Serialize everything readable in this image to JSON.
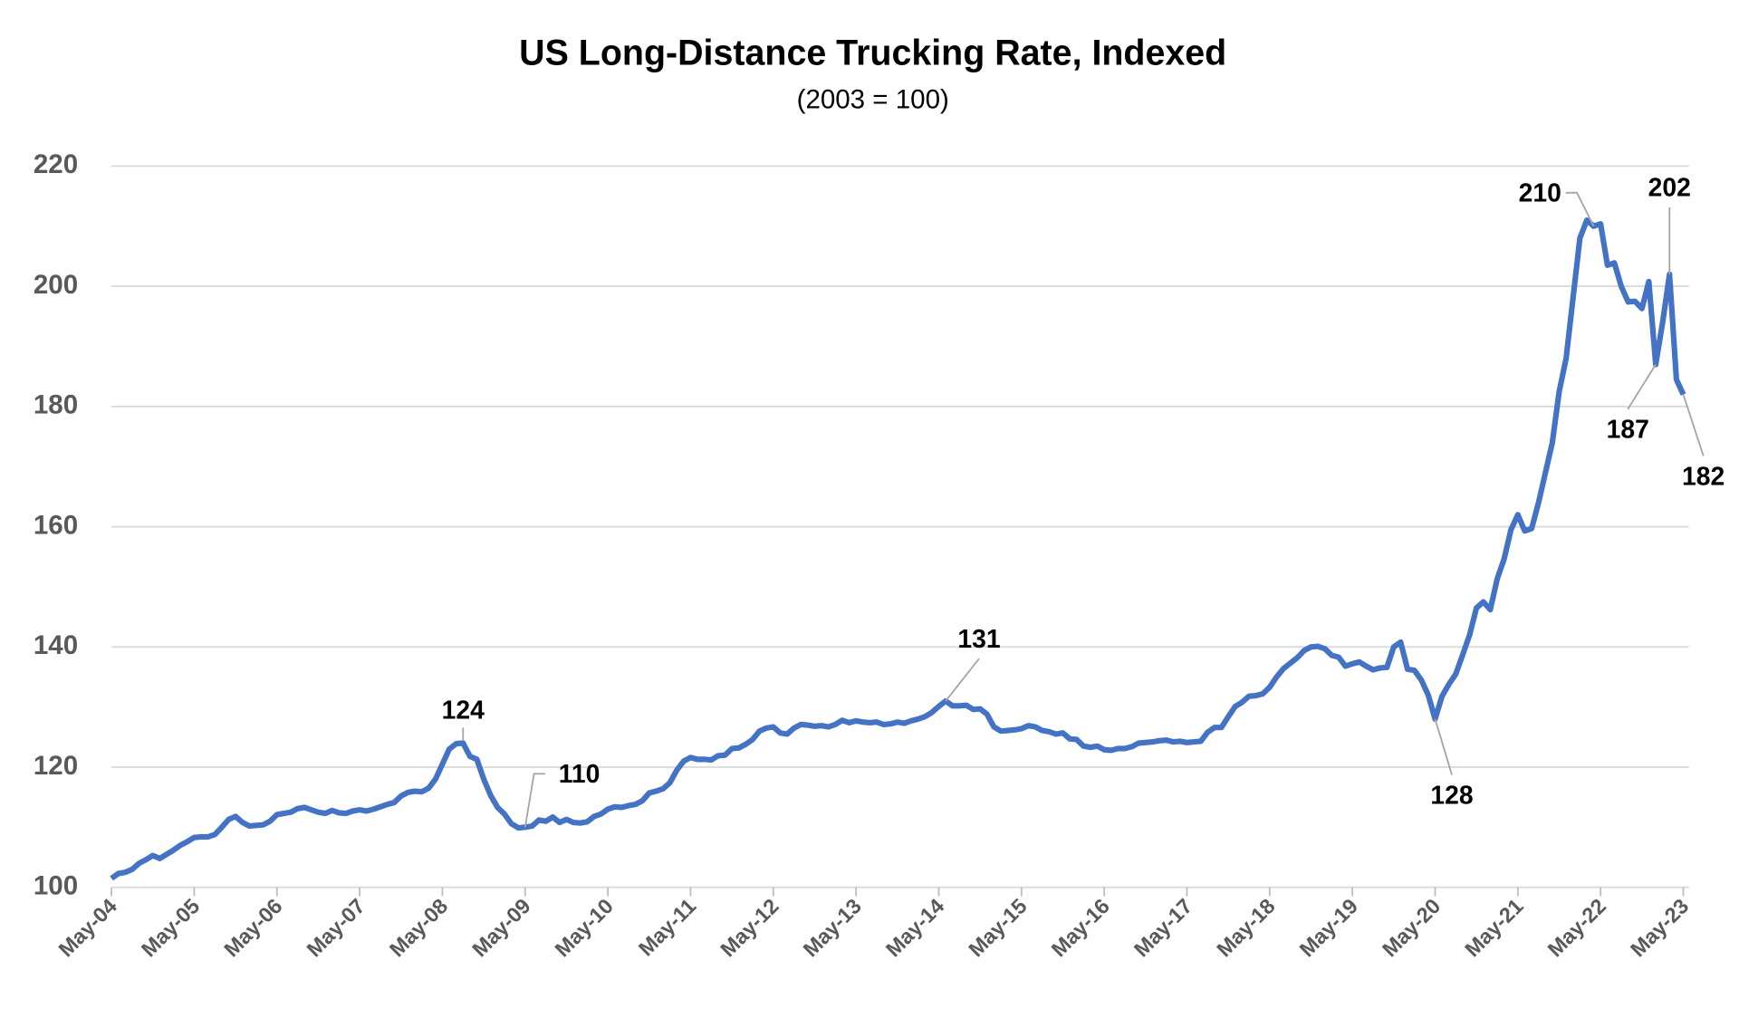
{
  "chart_data": {
    "type": "line",
    "title": "US Long-Distance Trucking Rate, Indexed",
    "subtitle": "(2003 = 100)",
    "categories": [
      "May-04",
      null,
      null,
      null,
      null,
      null,
      null,
      null,
      null,
      null,
      null,
      null,
      "May-05",
      null,
      null,
      null,
      null,
      null,
      null,
      null,
      null,
      null,
      null,
      null,
      "May-06",
      null,
      null,
      null,
      null,
      null,
      null,
      null,
      null,
      null,
      null,
      null,
      "May-07",
      null,
      null,
      null,
      null,
      null,
      null,
      null,
      null,
      null,
      null,
      null,
      "May-08",
      null,
      null,
      null,
      null,
      null,
      null,
      null,
      null,
      null,
      null,
      null,
      "May-09",
      null,
      null,
      null,
      null,
      null,
      null,
      null,
      null,
      null,
      null,
      null,
      "May-10",
      null,
      null,
      null,
      null,
      null,
      null,
      null,
      null,
      null,
      null,
      null,
      "May-11",
      null,
      null,
      null,
      null,
      null,
      null,
      null,
      null,
      null,
      null,
      null,
      "May-12",
      null,
      null,
      null,
      null,
      null,
      null,
      null,
      null,
      null,
      null,
      null,
      "May-13",
      null,
      null,
      null,
      null,
      null,
      null,
      null,
      null,
      null,
      null,
      null,
      "May-14",
      null,
      null,
      null,
      null,
      null,
      null,
      null,
      null,
      null,
      null,
      null,
      "May-15",
      null,
      null,
      null,
      null,
      null,
      null,
      null,
      null,
      null,
      null,
      null,
      "May-16",
      null,
      null,
      null,
      null,
      null,
      null,
      null,
      null,
      null,
      null,
      null,
      "May-17",
      null,
      null,
      null,
      null,
      null,
      null,
      null,
      null,
      null,
      null,
      null,
      "May-18",
      null,
      null,
      null,
      null,
      null,
      null,
      null,
      null,
      null,
      null,
      null,
      "May-19",
      null,
      null,
      null,
      null,
      null,
      null,
      null,
      null,
      null,
      null,
      null,
      "May-20",
      null,
      null,
      null,
      null,
      null,
      null,
      null,
      null,
      null,
      null,
      null,
      "May-21",
      null,
      null,
      null,
      null,
      null,
      null,
      null,
      null,
      null,
      null,
      null,
      "May-22",
      null,
      null,
      null,
      null,
      null,
      null,
      null,
      null,
      null,
      null,
      null,
      "May-23"
    ],
    "series": [
      {
        "name": "US Long-Distance Trucking Rate",
        "color": "#4472c4",
        "values": [
          101.5,
          102.3,
          102.5,
          103,
          104,
          104.6,
          105.3,
          104.8,
          105.5,
          106.2,
          107,
          107.6,
          108.3,
          108.4,
          108.4,
          108.8,
          110,
          111.3,
          111.8,
          110.8,
          110.2,
          110.3,
          110.4,
          111,
          112.1,
          112.3,
          112.5,
          113.1,
          113.3,
          112.9,
          112.5,
          112.3,
          112.8,
          112.4,
          112.3,
          112.7,
          112.9,
          112.7,
          113,
          113.4,
          113.8,
          114.1,
          115.2,
          115.8,
          116,
          115.9,
          116.5,
          118,
          120.5,
          123,
          123.9,
          124,
          121.8,
          121.3,
          118,
          115.3,
          113.3,
          112.2,
          110.6,
          109.9,
          110,
          110.2,
          111.2,
          111,
          111.7,
          110.8,
          111.3,
          110.8,
          110.7,
          110.9,
          111.8,
          112.2,
          113,
          113.4,
          113.3,
          113.6,
          113.8,
          114.4,
          115.7,
          116,
          116.4,
          117.4,
          119.5,
          121,
          121.6,
          121.3,
          121.3,
          121.2,
          121.9,
          122,
          123.1,
          123.2,
          123.8,
          124.6,
          126,
          126.5,
          126.7,
          125.7,
          125.5,
          126.5,
          127.1,
          127,
          126.8,
          126.9,
          126.7,
          127.1,
          127.8,
          127.4,
          127.7,
          127.5,
          127.4,
          127.5,
          127.1,
          127.2,
          127.5,
          127.3,
          127.7,
          128,
          128.4,
          129.1,
          130.1,
          131,
          130.2,
          130.2,
          130.3,
          129.6,
          129.7,
          128.8,
          126.7,
          126,
          126.1,
          126.2,
          126.4,
          126.9,
          126.7,
          126.1,
          125.9,
          125.5,
          125.7,
          124.7,
          124.6,
          123.5,
          123.3,
          123.5,
          122.9,
          122.8,
          123.1,
          123.1,
          123.4,
          124,
          124.1,
          124.2,
          124.4,
          124.5,
          124.2,
          124.3,
          124.1,
          124.2,
          124.3,
          125.8,
          126.6,
          126.6,
          128.4,
          130.1,
          130.8,
          131.8,
          131.9,
          132.2,
          133.3,
          135,
          136.4,
          137.3,
          138.2,
          139.4,
          140,
          140.1,
          139.7,
          138.6,
          138.3,
          136.8,
          137.2,
          137.5,
          136.8,
          136.2,
          136.5,
          136.6,
          140,
          140.8,
          136.3,
          136.1,
          134.5,
          132,
          128,
          131.8,
          133.8,
          135.5,
          138.7,
          142,
          146.5,
          147.5,
          146.2,
          151.3,
          154.6,
          159.5,
          162,
          159.3,
          159.7,
          164,
          169,
          174,
          182.5,
          188,
          198,
          208,
          211,
          210,
          210.4,
          203.5,
          203.9,
          200,
          197.4,
          197.5,
          196.3,
          200.8,
          187,
          194,
          202,
          184.5,
          182
        ],
        "value_labels": [
          null,
          null,
          null,
          null,
          null,
          null,
          null,
          null,
          null,
          null,
          null,
          null,
          null,
          null,
          null,
          null,
          null,
          null,
          null,
          null,
          null,
          null,
          null,
          null,
          null,
          null,
          null,
          null,
          null,
          null,
          null,
          null,
          null,
          null,
          null,
          null,
          null,
          null,
          null,
          null,
          null,
          null,
          null,
          null,
          null,
          null,
          null,
          null,
          null,
          null,
          null,
          "124",
          null,
          null,
          null,
          null,
          null,
          null,
          null,
          null,
          "110",
          null,
          null,
          null,
          null,
          null,
          null,
          null,
          null,
          null,
          null,
          null,
          null,
          null,
          null,
          null,
          null,
          null,
          null,
          null,
          null,
          null,
          null,
          null,
          null,
          null,
          null,
          null,
          null,
          null,
          null,
          null,
          null,
          null,
          null,
          null,
          null,
          null,
          null,
          null,
          null,
          null,
          null,
          null,
          null,
          null,
          null,
          null,
          null,
          null,
          null,
          null,
          null,
          null,
          null,
          null,
          null,
          null,
          null,
          null,
          null,
          "131",
          null,
          null,
          null,
          null,
          null,
          null,
          null,
          null,
          null,
          null,
          null,
          null,
          null,
          null,
          null,
          null,
          null,
          null,
          null,
          null,
          null,
          null,
          null,
          null,
          null,
          null,
          null,
          null,
          null,
          null,
          null,
          null,
          null,
          null,
          null,
          null,
          null,
          null,
          null,
          null,
          null,
          null,
          null,
          null,
          null,
          null,
          null,
          null,
          null,
          null,
          null,
          null,
          null,
          null,
          null,
          null,
          null,
          null,
          null,
          null,
          null,
          null,
          null,
          null,
          null,
          null,
          null,
          null,
          null,
          null,
          "128",
          null,
          null,
          null,
          null,
          null,
          null,
          null,
          null,
          null,
          null,
          null,
          null,
          null,
          null,
          null,
          null,
          null,
          null,
          null,
          null,
          null,
          null,
          "210",
          null,
          null,
          null,
          null,
          null,
          null,
          null,
          null,
          "187",
          null,
          "202",
          null,
          "182"
        ]
      }
    ],
    "ylim": [
      100,
      220
    ],
    "yticks": [
      100,
      120,
      140,
      160,
      180,
      200,
      220
    ],
    "grid": true
  }
}
